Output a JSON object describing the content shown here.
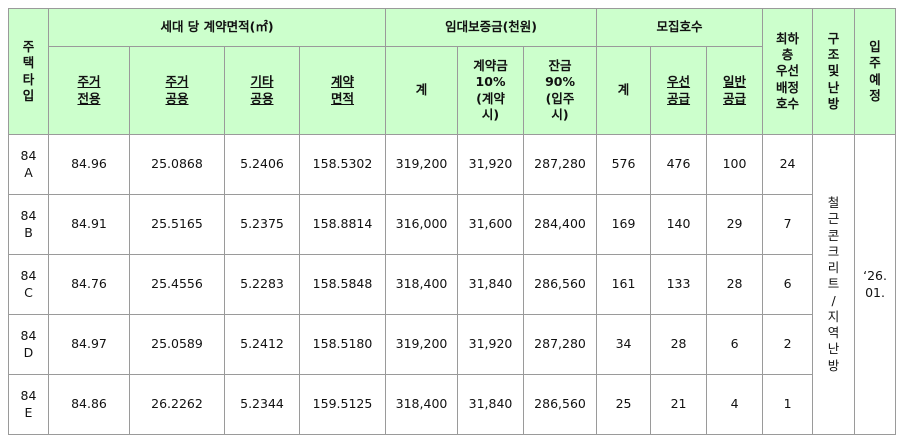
{
  "header": {
    "type_col": "주택타입",
    "area_group": "세대 당 계약면적(㎡)",
    "area_cols": [
      "주거\n전용",
      "주거\n공용",
      "기타\n공용",
      "계약\n면적"
    ],
    "deposit_group": "임대보증금(천원)",
    "deposit_cols": [
      "계",
      "계약금\n10%\n(계약\n시)",
      "잔금\n90%\n(입주\n시)"
    ],
    "recruit_group": "모집호수",
    "recruit_cols": [
      "계",
      "우선\n공급",
      "일반\n공급"
    ],
    "lowest_floor": "최하\n층\n우선\n배정\n호수",
    "structure": "구조및난방",
    "move_in": "입주예정"
  },
  "rows": [
    {
      "type": "84\nA",
      "excl": "84.96",
      "common": "25.0868",
      "other": "5.2406",
      "contract": "158.5302",
      "total": "319,200",
      "down": "31,920",
      "balance": "287,280",
      "recruit_total": "576",
      "priority": "476",
      "general": "100",
      "lowest": "24"
    },
    {
      "type": "84\nB",
      "excl": "84.91",
      "common": "25.5165",
      "other": "5.2375",
      "contract": "158.8814",
      "total": "316,000",
      "down": "31,600",
      "balance": "284,400",
      "recruit_total": "169",
      "priority": "140",
      "general": "29",
      "lowest": "7"
    },
    {
      "type": "84\nC",
      "excl": "84.76",
      "common": "25.4556",
      "other": "5.2283",
      "contract": "158.5848",
      "total": "318,400",
      "down": "31,840",
      "balance": "286,560",
      "recruit_total": "161",
      "priority": "133",
      "general": "28",
      "lowest": "6"
    },
    {
      "type": "84\nD",
      "excl": "84.97",
      "common": "25.0589",
      "other": "5.2412",
      "contract": "158.5180",
      "total": "319,200",
      "down": "31,920",
      "balance": "287,280",
      "recruit_total": "34",
      "priority": "28",
      "general": "6",
      "lowest": "2"
    },
    {
      "type": "84\nE",
      "excl": "84.86",
      "common": "26.2262",
      "other": "5.2344",
      "contract": "159.5125",
      "total": "318,400",
      "down": "31,840",
      "balance": "286,560",
      "recruit_total": "25",
      "priority": "21",
      "general": "4",
      "lowest": "1"
    }
  ],
  "structure_value": "철근콘크리트/지역난방",
  "move_in_value": "‘26.\n01."
}
